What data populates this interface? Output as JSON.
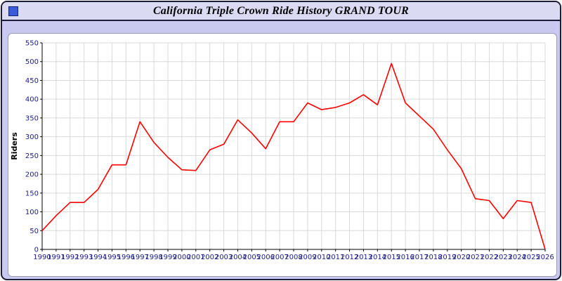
{
  "window": {
    "title": "California Triple Crown Ride History GRAND TOUR",
    "icon_color": "#3a5bd9"
  },
  "colors": {
    "page_background": "#c9c9ef",
    "titlebar_background": "#dadaf3",
    "panel_background": "#ffffff",
    "grid": "#d9d9d9",
    "axis": "#000000",
    "tick_text": "#1a1a8c",
    "line": "#ff0000"
  },
  "chart_data": {
    "type": "line",
    "title": "California Triple Crown Ride History GRAND TOUR",
    "xlabel": "",
    "ylabel": "Riders",
    "ylim": [
      0,
      550
    ],
    "ytick_step": 50,
    "grid": true,
    "legend": "none",
    "line_color": "#ff0000",
    "x": [
      1990,
      1991,
      1992,
      1993,
      1994,
      1995,
      1996,
      1997,
      1998,
      1999,
      2000,
      2001,
      2002,
      2003,
      2004,
      2005,
      2006,
      2007,
      2008,
      2009,
      2010,
      2011,
      2012,
      2013,
      2014,
      2015,
      2016,
      2017,
      2018,
      2019,
      2020,
      2021,
      2022,
      2023,
      2024,
      2025,
      2026
    ],
    "values": [
      50,
      90,
      125,
      125,
      160,
      225,
      225,
      340,
      285,
      245,
      212,
      210,
      265,
      280,
      345,
      310,
      268,
      340,
      340,
      390,
      372,
      378,
      390,
      412,
      385,
      495,
      390,
      355,
      320,
      265,
      215,
      135,
      130,
      82,
      130,
      125,
      0
    ]
  }
}
